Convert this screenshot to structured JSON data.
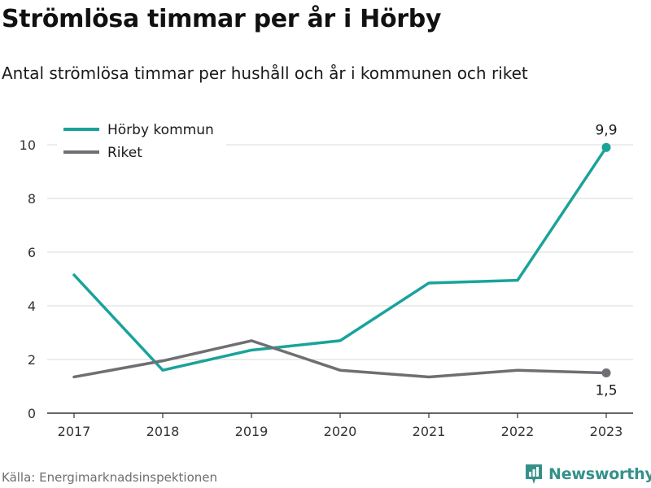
{
  "title": "Strömlösa timmar per år i Hörby",
  "subtitle": "Antal strömlösa timmar per hushåll och år i kommunen och riket",
  "source": "Källa: Energimarknadsinspektionen",
  "brand": {
    "name": "Newsworthy",
    "icon": "newsworthy-logo-icon"
  },
  "colors": {
    "primary": "#1aa39a",
    "secondary": "#6e6e73",
    "grid": "#d9d9d9",
    "axis": "#333333",
    "text": "#333333"
  },
  "chart_data": {
    "type": "line",
    "title": "",
    "xlabel": "",
    "ylabel": "",
    "x": [
      "2017",
      "2018",
      "2019",
      "2020",
      "2021",
      "2022",
      "2023"
    ],
    "ylim": [
      0,
      10
    ],
    "yticks": [
      0,
      2,
      4,
      6,
      8,
      10
    ],
    "grid": true,
    "legend_position": "top-left",
    "series": [
      {
        "name": "Hörby kommun",
        "color": "#1aa39a",
        "values": [
          5.15,
          1.6,
          2.35,
          2.7,
          4.85,
          4.95,
          9.9
        ],
        "end_label": "9,9",
        "end_label_position": "above"
      },
      {
        "name": "Riket",
        "color": "#6e6e73",
        "values": [
          1.35,
          1.95,
          2.7,
          1.6,
          1.35,
          1.6,
          1.5
        ],
        "end_label": "1,5",
        "end_label_position": "below"
      }
    ]
  }
}
